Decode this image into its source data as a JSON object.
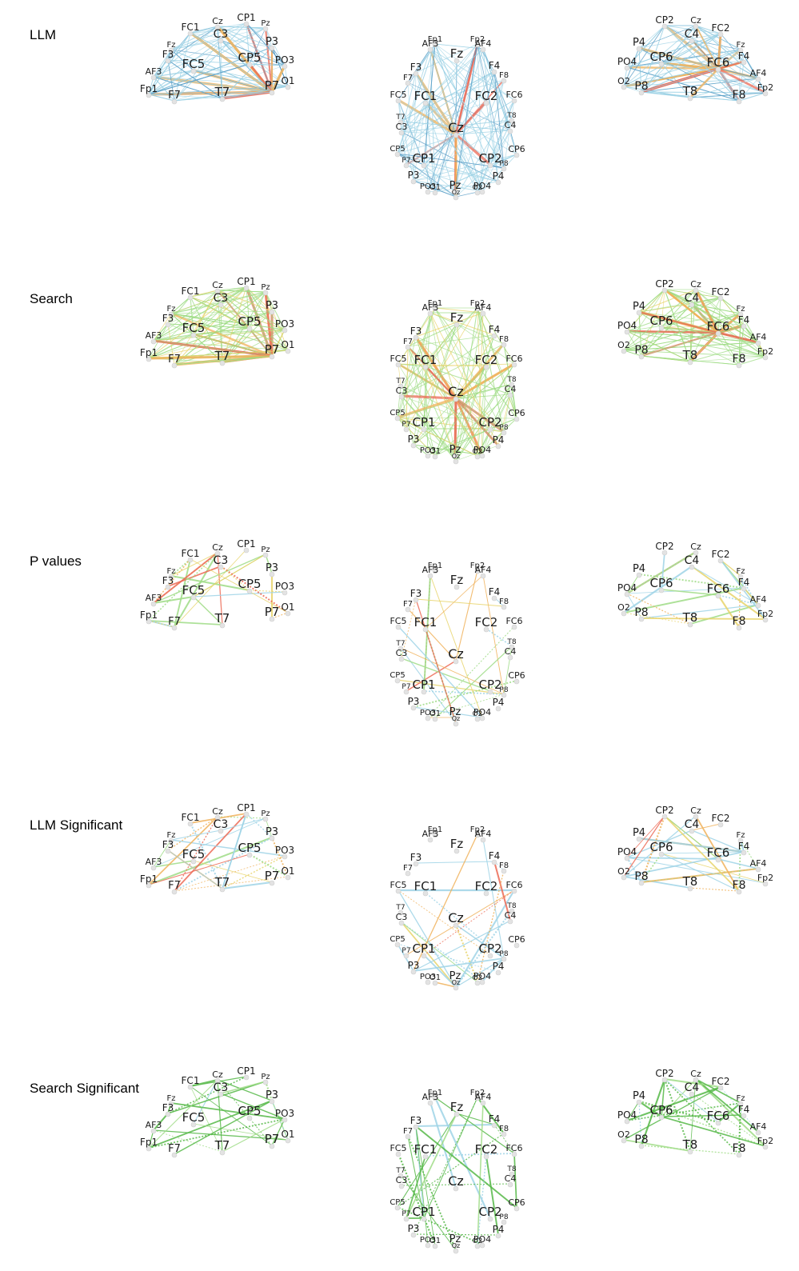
{
  "rows": [
    {
      "label": "LLM",
      "edge_style": "dense-blue-red"
    },
    {
      "label": "Search",
      "edge_style": "dense-green-red"
    },
    {
      "label": "P values",
      "edge_style": "sparse-mixed"
    },
    {
      "label": "LLM Significant",
      "edge_style": "sparse-blue-orange"
    },
    {
      "label": "Search Significant",
      "edge_style": "sparse-green"
    }
  ],
  "views": {
    "left": {
      "electrodes": [
        {
          "name": "Cz"
        },
        {
          "name": "CP1"
        },
        {
          "name": "FC1"
        },
        {
          "name": "C3"
        },
        {
          "name": "Pz"
        },
        {
          "name": "P3"
        },
        {
          "name": "Fz"
        },
        {
          "name": "F3"
        },
        {
          "name": "FC5"
        },
        {
          "name": "CP5"
        },
        {
          "name": "PO3"
        },
        {
          "name": "AF3"
        },
        {
          "name": "O1"
        },
        {
          "name": "Fp1"
        },
        {
          "name": "F7"
        },
        {
          "name": "T7"
        },
        {
          "name": "P7"
        }
      ]
    },
    "top": {
      "electrodes": [
        {
          "name": "Fp1"
        },
        {
          "name": "Fp2"
        },
        {
          "name": "AF3"
        },
        {
          "name": "AF4"
        },
        {
          "name": "Fz"
        },
        {
          "name": "F3"
        },
        {
          "name": "F4"
        },
        {
          "name": "F7"
        },
        {
          "name": "F8"
        },
        {
          "name": "FC5"
        },
        {
          "name": "FC1"
        },
        {
          "name": "FC2"
        },
        {
          "name": "FC6"
        },
        {
          "name": "T7"
        },
        {
          "name": "C3"
        },
        {
          "name": "Cz"
        },
        {
          "name": "C4"
        },
        {
          "name": "T8"
        },
        {
          "name": "CP5"
        },
        {
          "name": "CP1"
        },
        {
          "name": "CP2"
        },
        {
          "name": "CP6"
        },
        {
          "name": "P7"
        },
        {
          "name": "P3"
        },
        {
          "name": "Pz"
        },
        {
          "name": "P4"
        },
        {
          "name": "P8"
        },
        {
          "name": "PO3"
        },
        {
          "name": "PO4"
        },
        {
          "name": "O1"
        },
        {
          "name": "Oz"
        },
        {
          "name": "O2"
        }
      ]
    },
    "right": {
      "electrodes": [
        {
          "name": "CP2"
        },
        {
          "name": "Cz"
        },
        {
          "name": "FC2"
        },
        {
          "name": "C4"
        },
        {
          "name": "P4"
        },
        {
          "name": "Fz"
        },
        {
          "name": "F4"
        },
        {
          "name": "CP6"
        },
        {
          "name": "FC6"
        },
        {
          "name": "PO4"
        },
        {
          "name": "AF4"
        },
        {
          "name": "O2"
        },
        {
          "name": "Fp2"
        },
        {
          "name": "P8"
        },
        {
          "name": "T8"
        },
        {
          "name": "F8"
        }
      ]
    }
  },
  "colors": {
    "blue": "#9fd3e6",
    "blue_dark": "#4f95c2",
    "green": "#9fdc86",
    "green_dark": "#56b848",
    "orange": "#f0b25a",
    "red": "#ec6a55",
    "yellow": "#e8d36a",
    "node_fill": "#e3e3e3",
    "label": "#1b1b1b"
  }
}
